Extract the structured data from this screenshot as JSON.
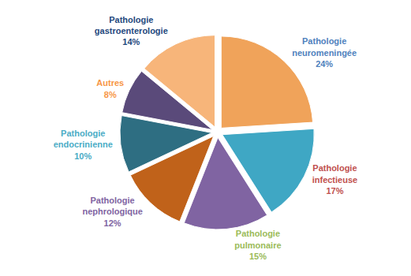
{
  "chart_data": {
    "type": "pie",
    "categories": [
      "Pathologie neuromeningée",
      "Pathologie infectieuse",
      "Pathologie pulmonaire",
      "Pathologie nephrologique",
      "Pathologie endocrinienne",
      "Autres",
      "Pathologie gastroenterologie"
    ],
    "values": [
      24,
      17,
      15,
      12,
      10,
      8,
      14
    ],
    "value_labels": [
      "24%",
      "17%",
      "15%",
      "12%",
      "10%",
      "8%",
      "14%"
    ],
    "colors": [
      "#F0A35A",
      "#3FA7C4",
      "#8064A2",
      "#C0621A",
      "#2E6E82",
      "#5A4A7A",
      "#F7B57A"
    ],
    "data_labels": true
  }
}
